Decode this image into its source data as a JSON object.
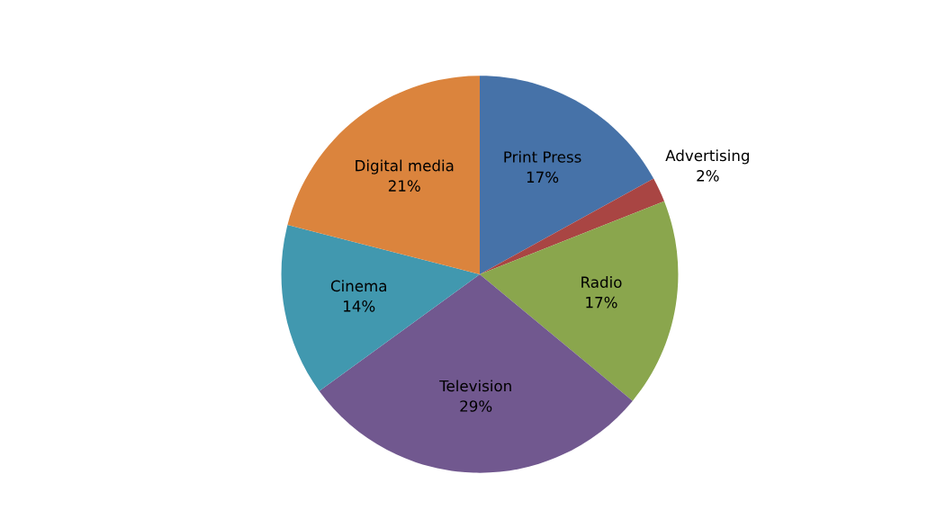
{
  "chart_data": {
    "type": "pie",
    "categories": [
      "Print Press",
      "Advertising",
      "Radio",
      "Television",
      "Cinema",
      "Digital media"
    ],
    "values": [
      17,
      2,
      17,
      29,
      14,
      21
    ],
    "value_labels": [
      "17%",
      "2%",
      "17%",
      "29%",
      "14%",
      "21%"
    ],
    "colors": [
      "#4672a8",
      "#a94543",
      "#8aa64d",
      "#71588f",
      "#4198af",
      "#db843d"
    ],
    "legend": false
  }
}
